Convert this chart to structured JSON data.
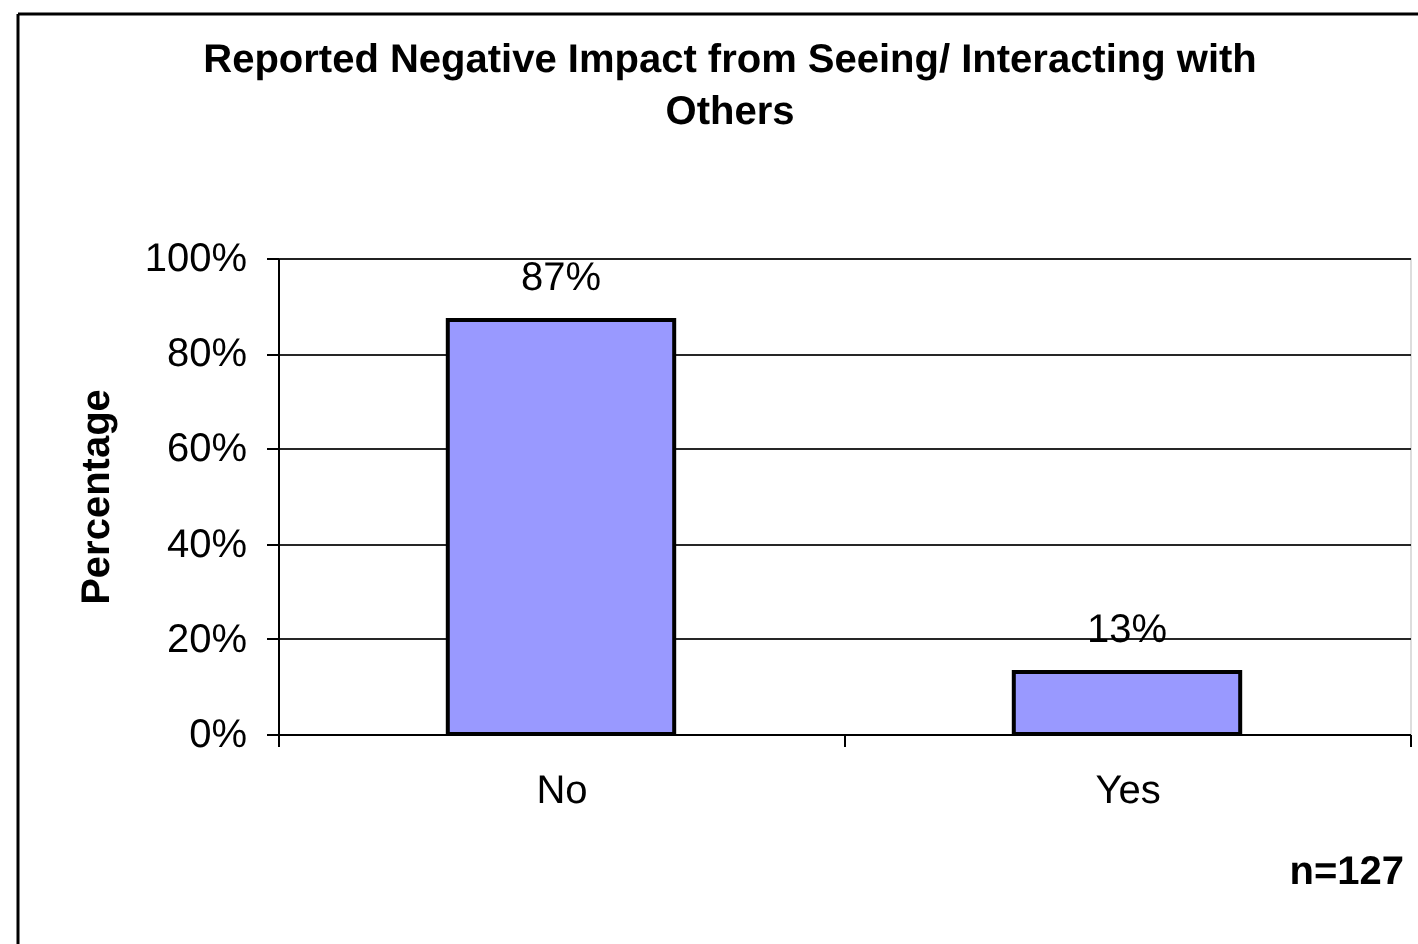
{
  "chart_data": {
    "type": "bar",
    "title": "Reported Negative Impact from Seeing/ Interacting with Others",
    "ylabel": "Percentage",
    "categories": [
      "No",
      "Yes"
    ],
    "values": [
      87,
      13
    ],
    "color": "#9999ff",
    "value_labels": [
      "87%",
      "13%"
    ],
    "ylim": [
      0,
      100
    ],
    "yticks": [
      {
        "value": 0,
        "label": "0%"
      },
      {
        "value": 20,
        "label": "20%"
      },
      {
        "value": 40,
        "label": "40%"
      },
      {
        "value": 60,
        "label": "60%"
      },
      {
        "value": 80,
        "label": "80%"
      },
      {
        "value": 100,
        "label": "100%"
      }
    ],
    "grid": "y",
    "annotations": [
      "n=127"
    ]
  }
}
